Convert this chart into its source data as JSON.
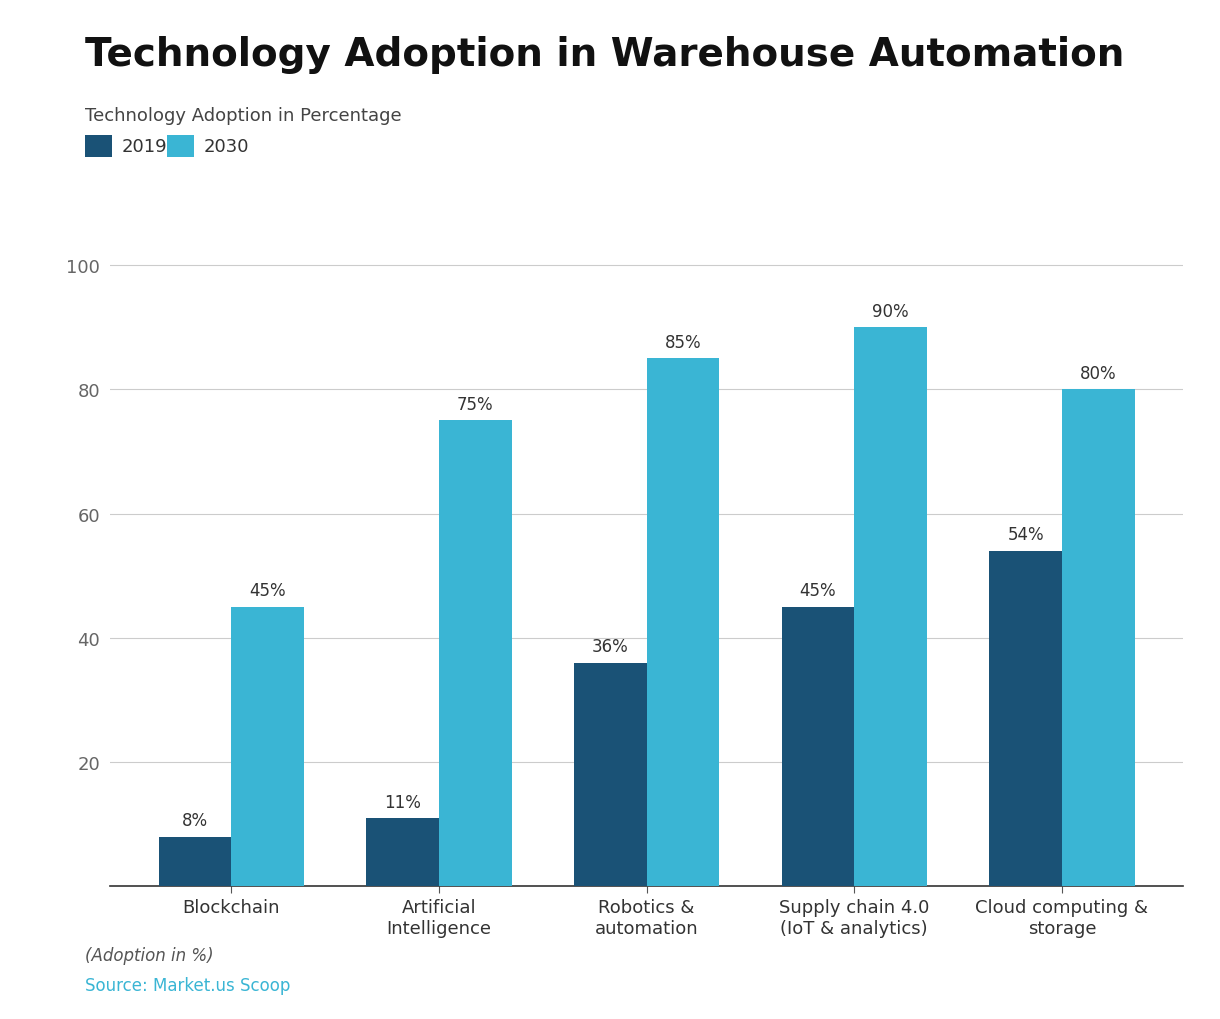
{
  "title": "Technology Adoption in Warehouse Automation",
  "subtitle": "Technology Adoption in Percentage",
  "categories": [
    "Blockchain",
    "Artificial\nIntelligence",
    "Robotics &\nautomation",
    "Supply chain 4.0\n(IoT & analytics)",
    "Cloud computing &\nstorage"
  ],
  "values_2019": [
    8,
    11,
    36,
    45,
    54
  ],
  "values_2030": [
    45,
    75,
    85,
    90,
    80
  ],
  "labels_2019": [
    "8%",
    "11%",
    "36%",
    "45%",
    "54%"
  ],
  "labels_2030": [
    "45%",
    "75%",
    "85%",
    "90%",
    "80%"
  ],
  "color_2019": "#1a5276",
  "color_2030": "#3ab5d4",
  "ylim": [
    0,
    110
  ],
  "yticks": [
    20,
    40,
    60,
    80,
    100
  ],
  "legend_labels": [
    "2019",
    "2030"
  ],
  "footer_italic": "(Adoption in %)",
  "footer_source": "Source: Market.us Scoop",
  "footer_source_color": "#3ab5d4",
  "background_color": "#ffffff",
  "title_fontsize": 28,
  "subtitle_fontsize": 13,
  "bar_width": 0.35,
  "annotation_fontsize": 12
}
